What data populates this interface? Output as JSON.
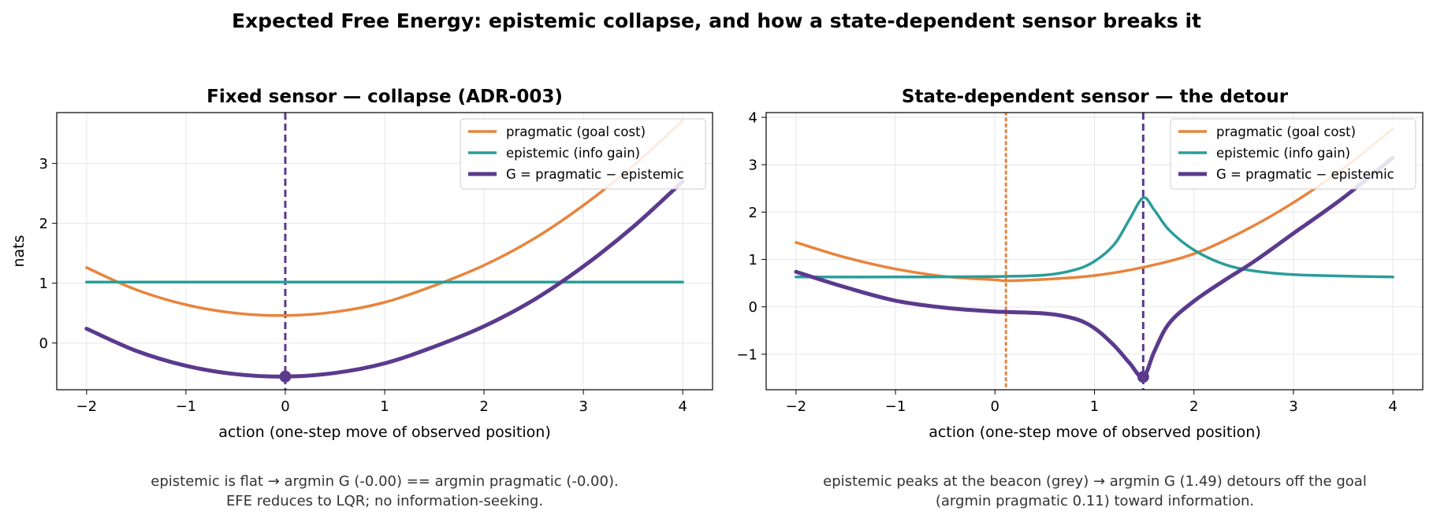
{
  "figure_title": "Expected Free Energy: epistemic collapse, and how a state-dependent sensor breaks it",
  "colors": {
    "pragmatic": "#e8843d",
    "epistemic": "#2a9d9a",
    "G": "#5b3a8e",
    "grid": "#e6e6e6",
    "caption": "#333333"
  },
  "chart_data": [
    {
      "type": "line",
      "title": "Fixed sensor — collapse (ADR-003)",
      "xlabel": "action  (one-step move of observed position)",
      "ylabel": "nats",
      "xlim": [
        -2.3,
        4.3
      ],
      "ylim": [
        -0.78,
        3.85
      ],
      "xticks": [
        -2,
        -1,
        0,
        1,
        2,
        3,
        4
      ],
      "xtick_labels": [
        "−2",
        "−1",
        "0",
        "1",
        "2",
        "3",
        "4"
      ],
      "yticks": [
        0,
        1,
        2,
        3
      ],
      "ytick_labels": [
        "0",
        "1",
        "2",
        "3"
      ],
      "grid": true,
      "legend_position": "upper right",
      "series": [
        {
          "name": "pragmatic (goal cost)",
          "color_key": "pragmatic",
          "x": [
            -2.0,
            -1.5,
            -1.0,
            -0.5,
            0.0,
            0.5,
            1.0,
            1.5,
            2.0,
            2.5,
            3.0,
            3.5,
            4.0
          ],
          "y": [
            1.26,
            0.89,
            0.64,
            0.5,
            0.46,
            0.52,
            0.68,
            0.96,
            1.3,
            1.74,
            2.3,
            2.96,
            3.72
          ]
        },
        {
          "name": "epistemic (info gain)",
          "color_key": "epistemic",
          "x": [
            -2.0,
            4.0
          ],
          "y": [
            1.02,
            1.02
          ]
        },
        {
          "name": "G = pragmatic − epistemic",
          "color_key": "G",
          "x": [
            -2.0,
            -1.5,
            -1.0,
            -0.5,
            0.0,
            0.5,
            1.0,
            1.5,
            2.0,
            2.5,
            3.0,
            3.5,
            4.0
          ],
          "y": [
            0.24,
            -0.13,
            -0.38,
            -0.52,
            -0.56,
            -0.5,
            -0.34,
            -0.06,
            0.28,
            0.72,
            1.28,
            1.94,
            2.7
          ]
        }
      ],
      "vlines": [
        {
          "x": 0.0,
          "style": "dashed",
          "color_key": "G"
        }
      ],
      "markers": [
        {
          "x": 0.0,
          "y": -0.56,
          "color_key": "G"
        }
      ],
      "caption": [
        "epistemic is flat → argmin G (-0.00) == argmin pragmatic (-0.00).",
        "EFE reduces to LQR; no information-seeking."
      ]
    },
    {
      "type": "line",
      "title": "State-dependent sensor — the detour",
      "xlabel": "action  (one-step move of observed position)",
      "ylabel": "",
      "xlim": [
        -2.3,
        4.3
      ],
      "ylim": [
        -1.75,
        4.1
      ],
      "xticks": [
        -2,
        -1,
        0,
        1,
        2,
        3,
        4
      ],
      "xtick_labels": [
        "−2",
        "−1",
        "0",
        "1",
        "2",
        "3",
        "4"
      ],
      "yticks": [
        -1,
        0,
        1,
        2,
        3,
        4
      ],
      "ytick_labels": [
        "−1",
        "0",
        "1",
        "2",
        "3",
        "4"
      ],
      "grid": true,
      "legend_position": "upper right",
      "series": [
        {
          "name": "pragmatic (goal cost)",
          "color_key": "pragmatic",
          "x": [
            -2.0,
            -1.5,
            -1.0,
            -0.5,
            0.0,
            0.11,
            0.5,
            1.0,
            1.5,
            2.0,
            2.5,
            3.0,
            3.5,
            4.0
          ],
          "y": [
            1.36,
            1.04,
            0.8,
            0.64,
            0.57,
            0.55,
            0.58,
            0.66,
            0.84,
            1.12,
            1.6,
            2.2,
            2.92,
            3.76
          ]
        },
        {
          "name": "epistemic (info gain)",
          "color_key": "epistemic",
          "x": [
            -2.0,
            -1.0,
            0.0,
            0.5,
            0.8,
            1.0,
            1.2,
            1.35,
            1.49,
            1.6,
            1.75,
            2.0,
            2.3,
            2.6,
            3.0,
            3.5,
            4.0
          ],
          "y": [
            0.63,
            0.63,
            0.64,
            0.67,
            0.78,
            0.96,
            1.32,
            1.84,
            2.3,
            2.05,
            1.62,
            1.2,
            0.9,
            0.76,
            0.68,
            0.65,
            0.63
          ]
        },
        {
          "name": "G = pragmatic − epistemic",
          "color_key": "G",
          "x": [
            -2.0,
            -1.5,
            -1.0,
            -0.5,
            0.0,
            0.5,
            0.8,
            1.0,
            1.2,
            1.35,
            1.49,
            1.6,
            1.75,
            2.0,
            2.3,
            2.6,
            3.0,
            3.5,
            4.0
          ],
          "y": [
            0.74,
            0.41,
            0.13,
            -0.02,
            -0.1,
            -0.14,
            -0.25,
            -0.45,
            -0.82,
            -1.18,
            -1.48,
            -0.95,
            -0.35,
            0.12,
            0.55,
            0.95,
            1.55,
            2.3,
            3.15
          ]
        }
      ],
      "vlines": [
        {
          "x": 0.11,
          "style": "dotted",
          "color_key": "pragmatic"
        },
        {
          "x": 1.49,
          "style": "dashed",
          "color_key": "G"
        }
      ],
      "markers": [
        {
          "x": 1.49,
          "y": -1.48,
          "color_key": "G"
        }
      ],
      "caption": [
        "epistemic peaks at the beacon (grey) → argmin G (1.49) detours off the goal",
        "(argmin pragmatic 0.11) toward information."
      ]
    }
  ]
}
